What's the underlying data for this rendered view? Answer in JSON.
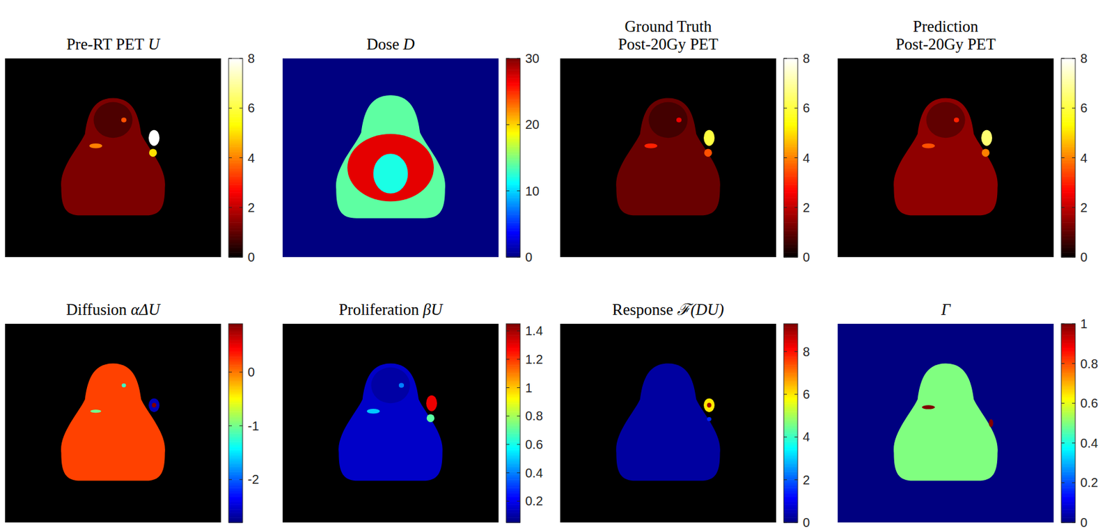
{
  "chart_data": [
    {
      "type": "heatmap",
      "title": [
        "Pre-RT PET U"
      ],
      "color": "hot",
      "color_range": [
        0,
        8
      ],
      "color_ticks": [
        0,
        2,
        4,
        6,
        8
      ],
      "values": [
        0,
        1.3,
        0.8,
        8,
        5,
        4,
        3.5
      ]
    },
    {
      "type": "heatmap",
      "title": [
        "Dose D"
      ],
      "color": "jet",
      "color_range": [
        0,
        30
      ],
      "color_ticks": [
        0,
        10,
        20,
        30
      ],
      "values": [
        0,
        14,
        27,
        12
      ]
    },
    {
      "type": "heatmap",
      "title": [
        "Ground Truth",
        "Post-20Gy PET"
      ],
      "color": "hot",
      "color_range": [
        0,
        8
      ],
      "color_ticks": [
        0,
        2,
        4,
        6,
        8
      ],
      "values": [
        0,
        1.1,
        0.7,
        6,
        3.5,
        3,
        2.5
      ]
    },
    {
      "type": "heatmap",
      "title": [
        "Prediction",
        "Post-20Gy PET"
      ],
      "color": "hot",
      "color_range": [
        0,
        8
      ],
      "color_ticks": [
        0,
        2,
        4,
        6,
        8
      ],
      "values": [
        0,
        1.5,
        1,
        6.5,
        4,
        3.5,
        3
      ]
    },
    {
      "type": "heatmap",
      "title": [
        "Diffusion αΔU"
      ],
      "color": "jet",
      "color_range": [
        -2.8,
        0.9
      ],
      "color_ticks": [
        -2,
        -1,
        0
      ],
      "values": [
        null,
        0.2,
        -2.6,
        0.9,
        -1,
        -1.2
      ]
    },
    {
      "type": "heatmap",
      "title": [
        "Proliferation βU"
      ],
      "color": "jet",
      "color_range": [
        0.05,
        1.45
      ],
      "color_ticks": [
        0.2,
        0.4,
        0.6,
        0.8,
        1,
        1.2,
        1.4
      ],
      "values": [
        null,
        0.15,
        0.1,
        1.3,
        0.7,
        0.5,
        0.4
      ]
    },
    {
      "type": "heatmap",
      "title": [
        "Response ℱ(DU)"
      ],
      "color": "jet",
      "color_range": [
        0,
        9.3
      ],
      "color_ticks": [
        0,
        2,
        4,
        6,
        8
      ],
      "values": [
        null,
        0.3,
        6,
        9,
        1.5
      ]
    },
    {
      "type": "heatmap",
      "title": [
        "Γ"
      ],
      "color": "jet",
      "color_range": [
        0,
        1
      ],
      "color_ticks": [
        0,
        0.2,
        0.4,
        0.6,
        0.8,
        1
      ],
      "values": [
        0,
        0.5,
        1,
        1
      ]
    }
  ]
}
